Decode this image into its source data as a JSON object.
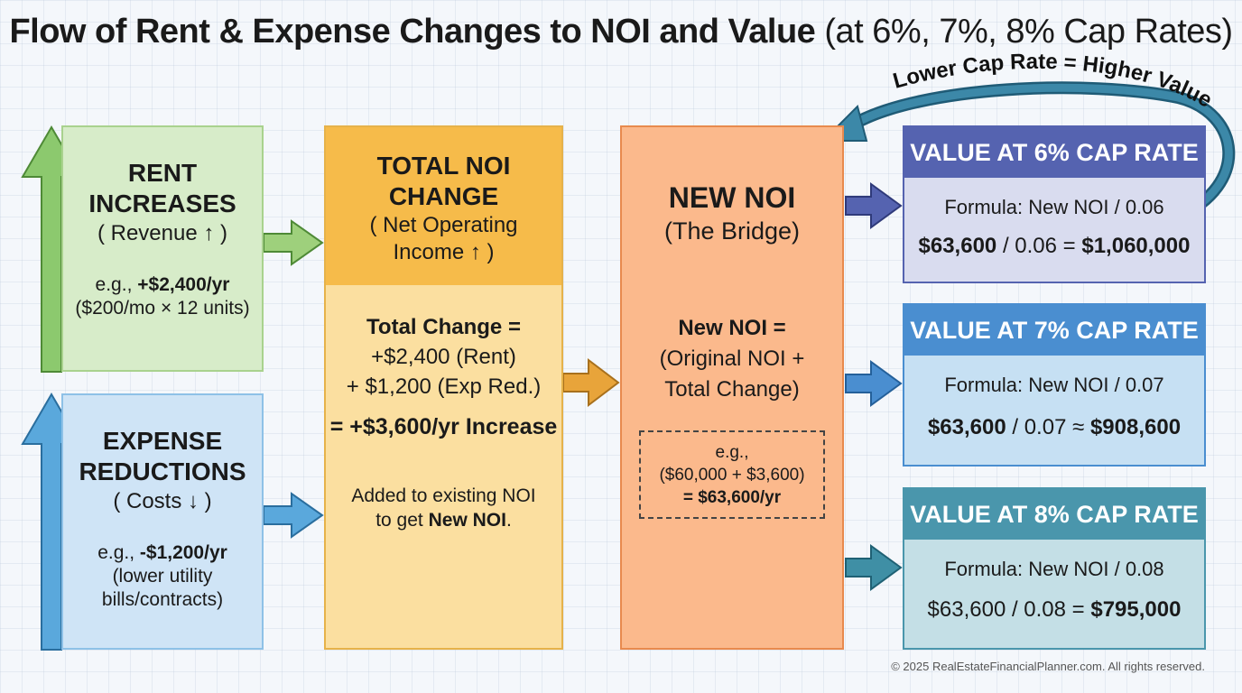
{
  "title": {
    "main": "Flow of Rent & Expense Changes to NOI and Value",
    "sub": "(at 6%, 7%, 8% Cap Rates)"
  },
  "rent_box": {
    "heading_line1": "RENT",
    "heading_line2": "INCREASES",
    "sub": "( Revenue ↑ )",
    "example_prefix": "e.g., ",
    "example_value": "+$2,400/yr",
    "example_note": "($200/mo × 12 units)"
  },
  "expense_box": {
    "heading_line1": "EXPENSE",
    "heading_line2": "REDUCTIONS",
    "sub": "( Costs ↓ )",
    "example_prefix": "e.g., ",
    "example_value": "-$1,200/yr",
    "example_note_line1": "(lower utility",
    "example_note_line2": "bills/contracts)"
  },
  "total_box": {
    "heading_line1": "TOTAL NOI",
    "heading_line2": "CHANGE",
    "sub_line1": "( Net Operating",
    "sub_line2": "Income ↑ )",
    "calc_line1": "Total Change =",
    "calc_line2": "+$2,400 (Rent)",
    "calc_line3": "+ $1,200 (Exp Red.)",
    "result": "= +$3,600/yr Increase",
    "note_line1": "Added to existing NOI",
    "note_prefix": "to get ",
    "note_bold": "New NOI",
    "note_suffix": "."
  },
  "noi_box": {
    "heading": "NEW NOI",
    "sub": "(The Bridge)",
    "formula_line1": "New NOI =",
    "formula_line2": "(Original NOI +",
    "formula_line3": "Total Change)",
    "example_line1": "e.g.,",
    "example_line2": "($60,000 + $3,600)",
    "example_line3": "= $63,600/yr"
  },
  "value_panels": [
    {
      "heading": "VALUE AT 6% CAP RATE",
      "formula": "Formula: New NOI / 0.06",
      "calc_left": "$63,600",
      "calc_mid": " / 0.06 = ",
      "calc_right": "$1,060,000"
    },
    {
      "heading": "VALUE AT 7% CAP RATE",
      "formula": "Formula: New NOI / 0.07",
      "calc_left": "$63,600",
      "calc_mid": " / 0.07 ≈ ",
      "calc_right": "$908,600"
    },
    {
      "heading": "VALUE AT 8% CAP RATE",
      "formula": "Formula: New NOI / 0.08",
      "calc_left": "$63,600 / 0.08 = ",
      "calc_right": "$795,000"
    }
  ],
  "arc_label": "Lower Cap Rate = Higher Value",
  "footer": "© 2025 RealEstateFinancialPlanner.com. All rights reserved.",
  "colors": {
    "rent_fill": "#d7ecc9",
    "expense_fill": "#cfe4f6",
    "total_head": "#f6bb4a",
    "total_body": "#fbdfa0",
    "noi_fill": "#fbb98c",
    "cap6_head": "#5563b0",
    "cap7_head": "#4a8ed0",
    "cap8_head": "#4a96ac",
    "arc_stroke": "#3c88a8"
  }
}
